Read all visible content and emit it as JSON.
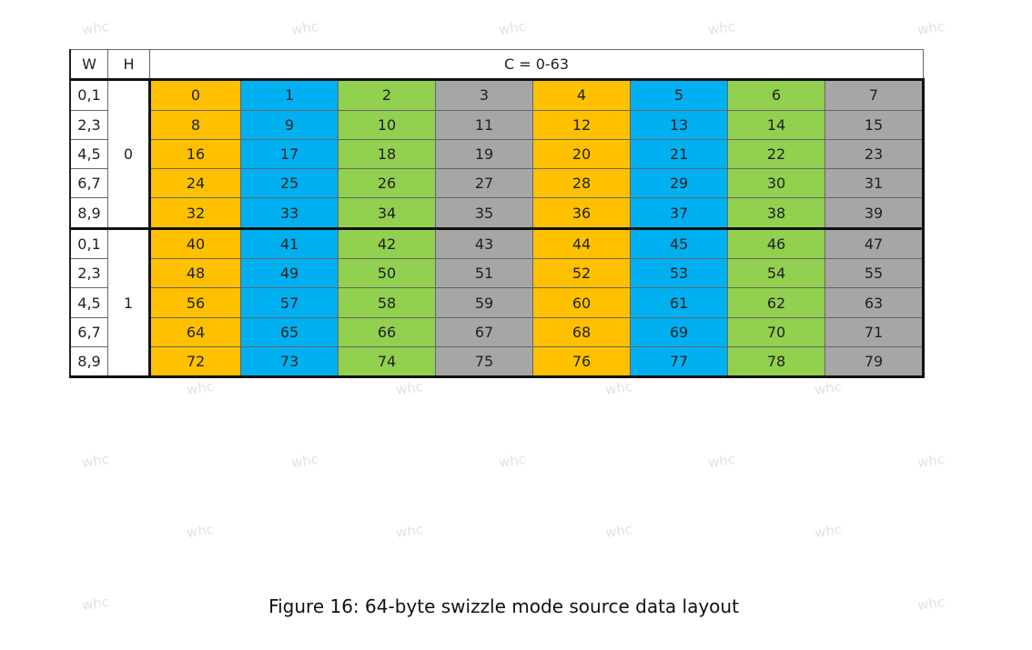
{
  "table": {
    "header": [
      "W",
      "H",
      "C = 0-63"
    ],
    "column_colors": [
      "#ffc000",
      "#00b0f0",
      "#92d050",
      "#a6a6a6",
      "#ffc000",
      "#00b0f0",
      "#92d050",
      "#a6a6a6"
    ],
    "groups": [
      {
        "h": "0",
        "rows": [
          {
            "w": "0,1",
            "values": [
              0,
              1,
              2,
              3,
              4,
              5,
              6,
              7
            ]
          },
          {
            "w": "2,3",
            "values": [
              8,
              9,
              10,
              11,
              12,
              13,
              14,
              15
            ]
          },
          {
            "w": "4,5",
            "values": [
              16,
              17,
              18,
              19,
              20,
              21,
              22,
              23
            ]
          },
          {
            "w": "6,7",
            "values": [
              24,
              25,
              26,
              27,
              28,
              29,
              30,
              31
            ]
          },
          {
            "w": "8,9",
            "values": [
              32,
              33,
              34,
              35,
              36,
              37,
              38,
              39
            ]
          }
        ]
      },
      {
        "h": "1",
        "rows": [
          {
            "w": "0,1",
            "values": [
              40,
              41,
              42,
              43,
              44,
              45,
              46,
              47
            ]
          },
          {
            "w": "2,3",
            "values": [
              48,
              49,
              50,
              51,
              52,
              53,
              54,
              55
            ]
          },
          {
            "w": "4,5",
            "values": [
              56,
              57,
              58,
              59,
              60,
              61,
              62,
              63
            ]
          },
          {
            "w": "6,7",
            "values": [
              64,
              65,
              66,
              67,
              68,
              69,
              70,
              71
            ]
          },
          {
            "w": "8,9",
            "values": [
              72,
              73,
              74,
              75,
              76,
              77,
              78,
              79
            ]
          }
        ]
      }
    ]
  },
  "caption": "Figure 16: 64-byte swizzle mode source data layout",
  "watermark": "whc"
}
